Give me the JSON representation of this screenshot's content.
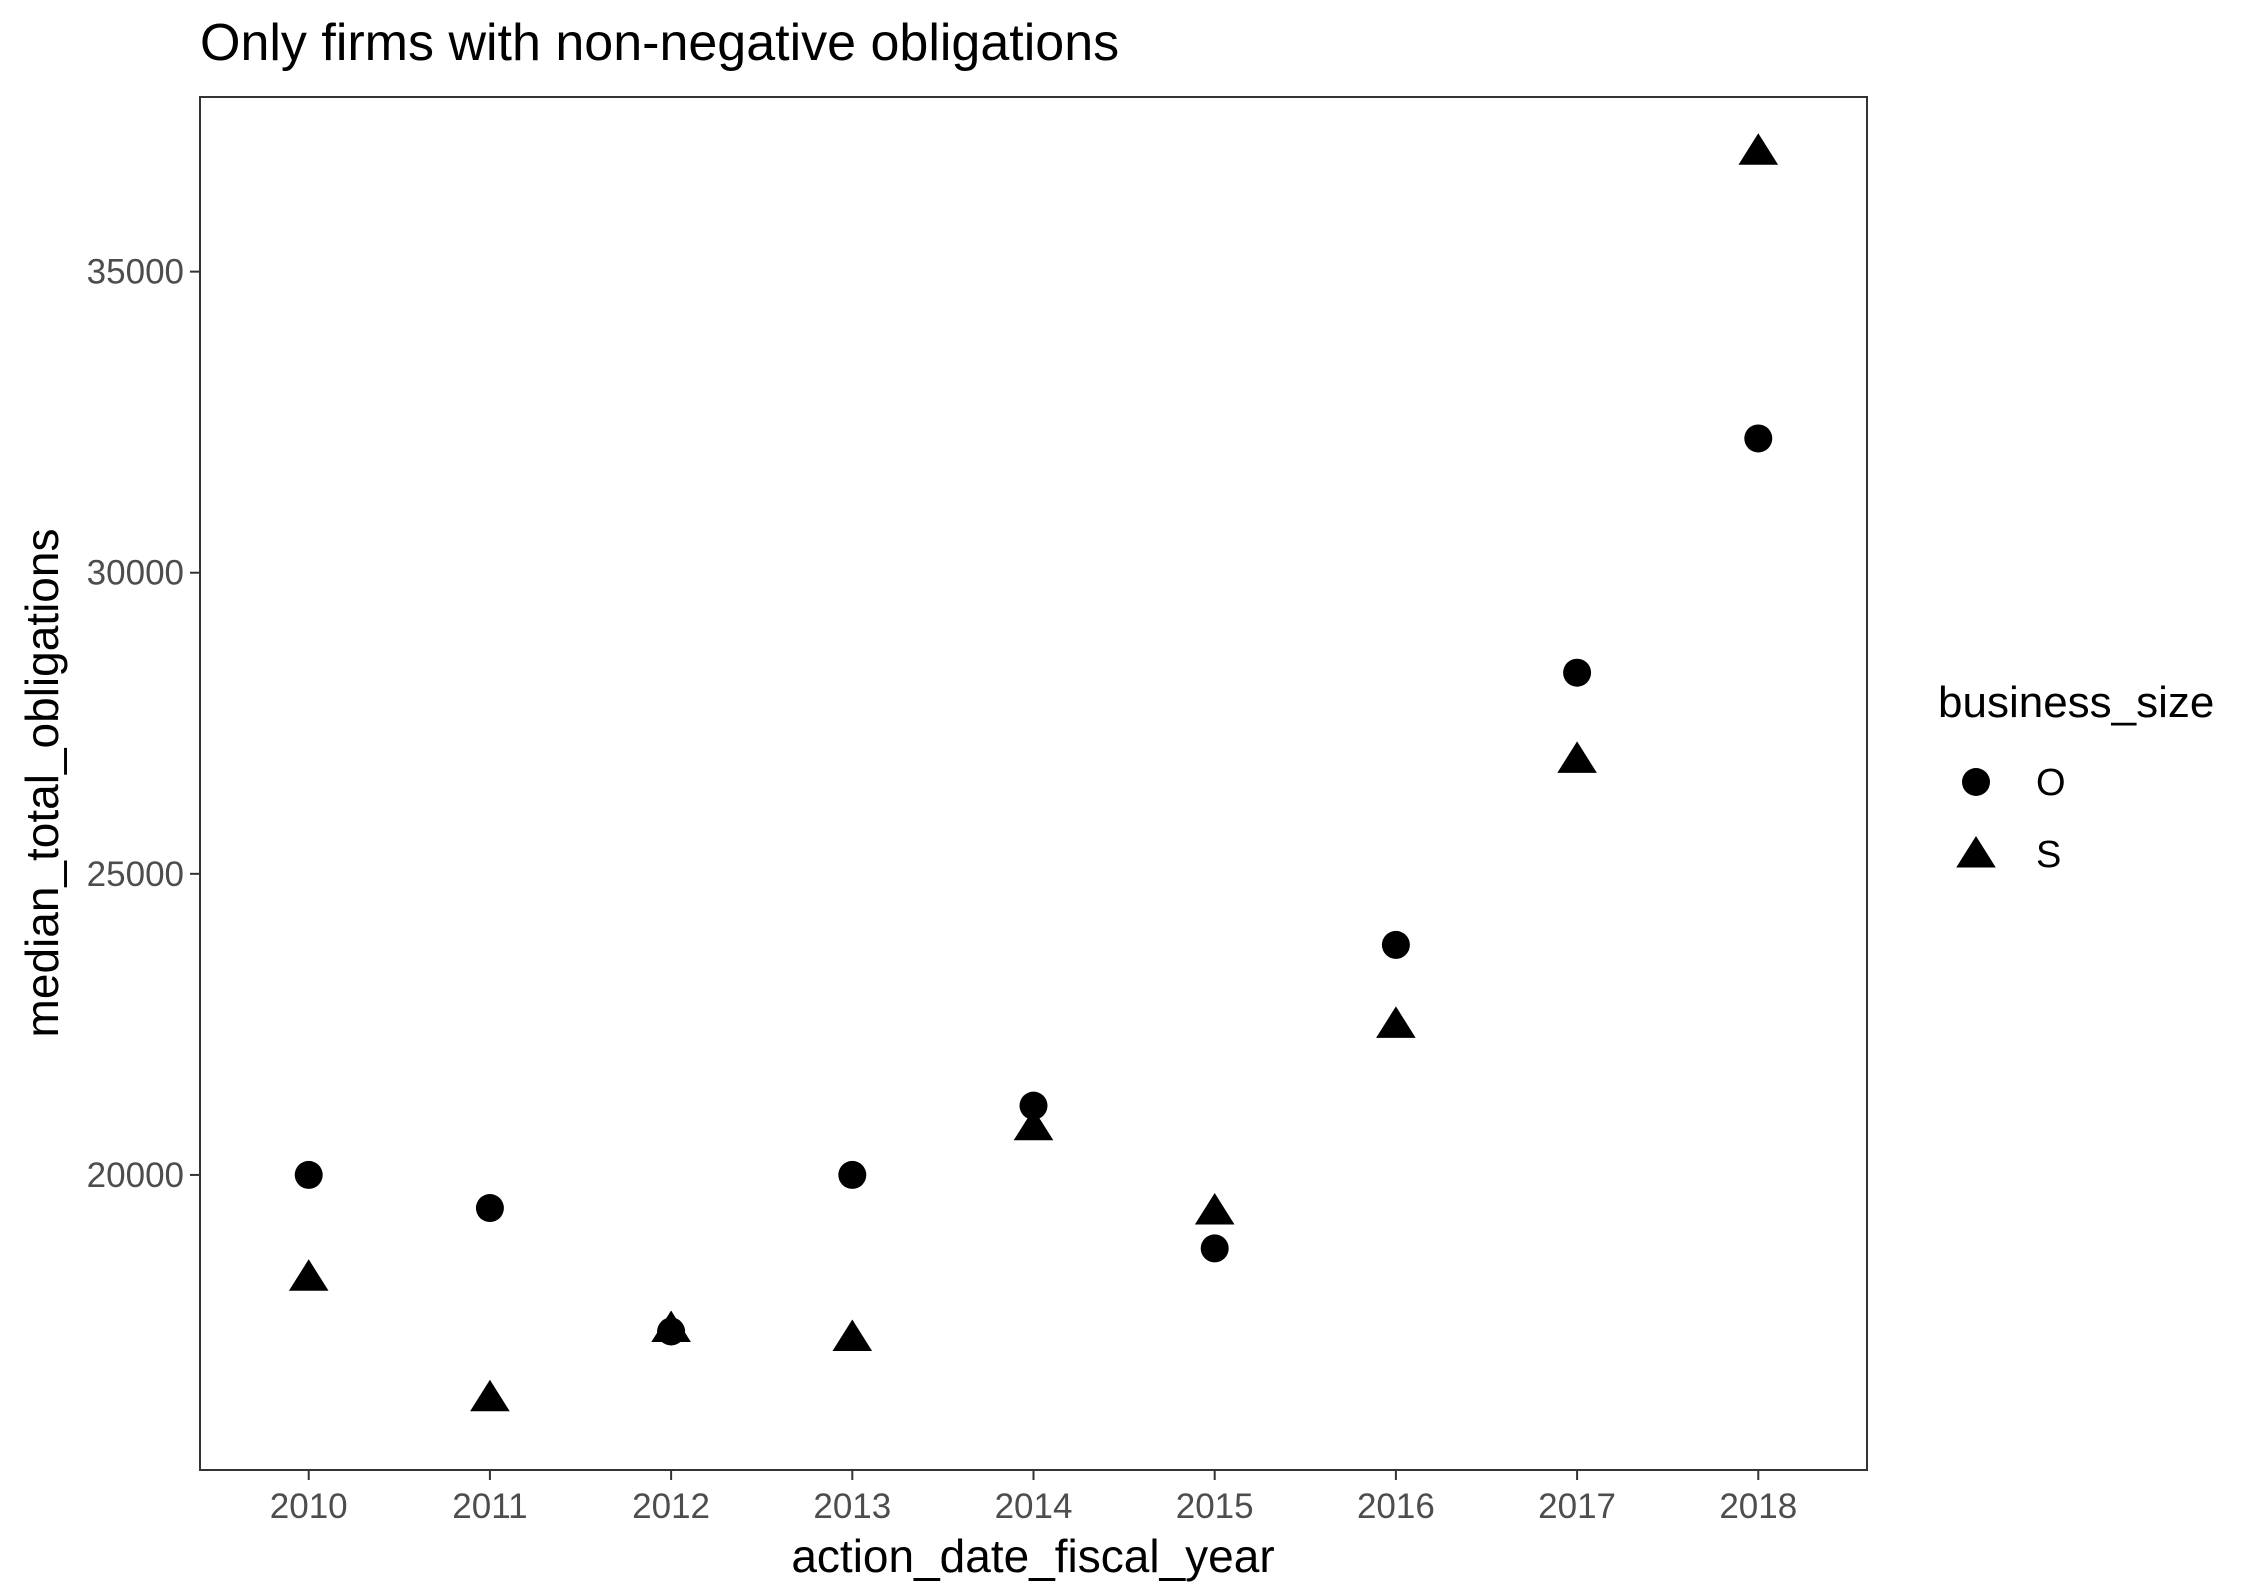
{
  "chart_data": {
    "type": "scatter",
    "title": "Only firms with non-negative obligations",
    "xlabel": "action_date_fiscal_year",
    "ylabel": "median_total_obligations",
    "x": [
      2010,
      2011,
      2012,
      2013,
      2014,
      2015,
      2016,
      2017,
      2018
    ],
    "x_ticks": [
      "2010",
      "2011",
      "2012",
      "2013",
      "2014",
      "2015",
      "2016",
      "2017",
      "2018"
    ],
    "y_ticks": [
      "20000",
      "25000",
      "30000",
      "35000"
    ],
    "xlim": [
      2009.4,
      2018.6
    ],
    "ylim": [
      15100,
      37900
    ],
    "grid": false,
    "legend": {
      "title": "business_size",
      "position": "right"
    },
    "series": [
      {
        "name": "O",
        "shape": "circle",
        "color": "#000000",
        "values": [
          20000,
          19450,
          17400,
          20000,
          21150,
          18780,
          23820,
          28340,
          32230
        ]
      },
      {
        "name": "S",
        "shape": "triangle",
        "color": "#000000",
        "values": [
          18300,
          16300,
          17450,
          17300,
          20800,
          19400,
          22500,
          26900,
          37000
        ]
      }
    ]
  }
}
